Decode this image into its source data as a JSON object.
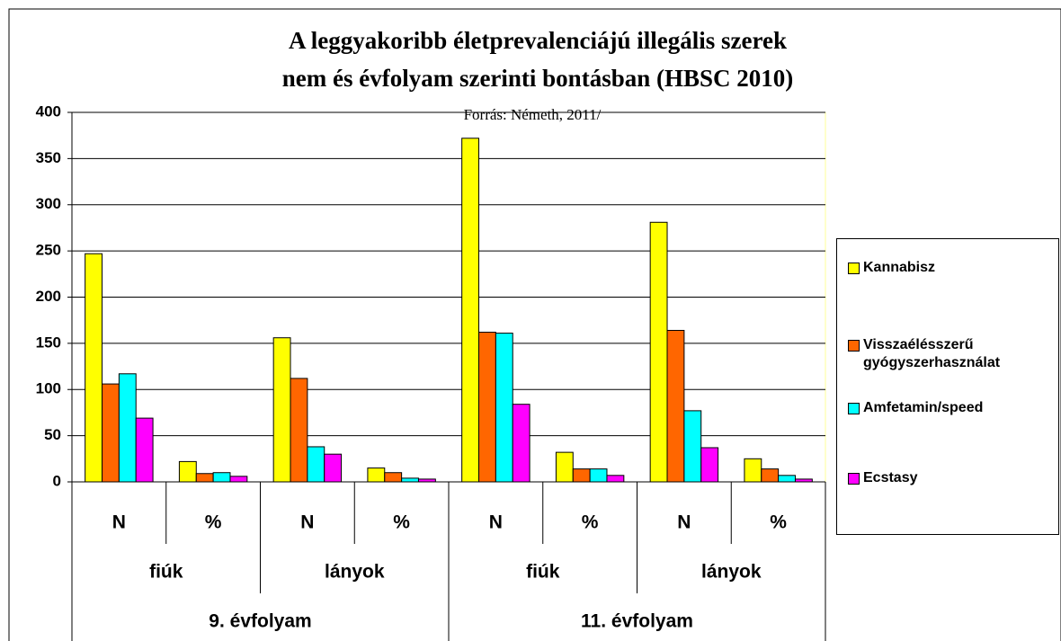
{
  "chart_data": {
    "type": "bar",
    "title": [
      "A leggyakoribb életprevalenciájú illegális szerek",
      "nem és évfolyam szerinti bontásban (HBSC 2010)"
    ],
    "subtitle": "Forrás: Németh, 2011/",
    "categories": [
      "N",
      "%",
      "N",
      "%",
      "N",
      "%",
      "N",
      "%"
    ],
    "subgroups": [
      "fiúk",
      "lányok",
      "fiúk",
      "lányok"
    ],
    "groups": [
      "9. évfolyam",
      "11. évfolyam"
    ],
    "series": [
      {
        "name": "Kannabisz",
        "color": "#ffff00",
        "values": [
          247,
          22,
          156,
          15,
          372,
          32,
          281,
          25
        ]
      },
      {
        "name": "Visszaélésszerű gyógyszerhasználat",
        "color": "#ff6600",
        "values": [
          106,
          9,
          112,
          10,
          162,
          14,
          164,
          14
        ]
      },
      {
        "name": "Amfetamin/speed",
        "color": "#00ffff",
        "values": [
          117,
          10,
          38,
          4,
          161,
          14,
          77,
          7
        ]
      },
      {
        "name": "Ecstasy",
        "color": "#ff00ff",
        "values": [
          69,
          6,
          30,
          3,
          84,
          7,
          37,
          3
        ]
      }
    ],
    "ylim": [
      0,
      400
    ],
    "yticks": [
      0,
      50,
      100,
      150,
      200,
      250,
      300,
      350,
      400
    ],
    "grid": true
  }
}
